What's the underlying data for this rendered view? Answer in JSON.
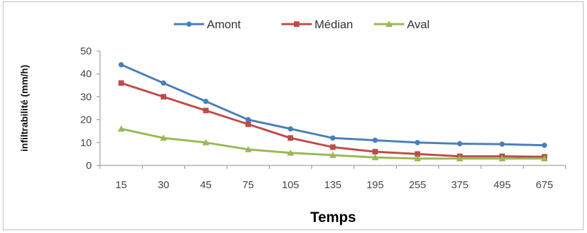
{
  "chart_data": {
    "type": "line",
    "title": "",
    "xlabel": "Temps",
    "ylabel": "infiltrabilité (mm/h)",
    "categories": [
      "15",
      "30",
      "45",
      "75",
      "105",
      "135",
      "195",
      "255",
      "375",
      "495",
      "675"
    ],
    "ylim": [
      0,
      50
    ],
    "yticks": [
      0,
      10,
      20,
      30,
      40,
      50
    ],
    "grid": false,
    "legend_position": "top",
    "series": [
      {
        "name": "Amont",
        "color": "#4a7ebb",
        "marker": "circle",
        "values": [
          44,
          36,
          28,
          20,
          16,
          12,
          11,
          10,
          9.5,
          9.3,
          8.8
        ]
      },
      {
        "name": "Médian",
        "color": "#be4b48",
        "marker": "square",
        "values": [
          36,
          30,
          24,
          18,
          12,
          8,
          6,
          5,
          4,
          4,
          3.8
        ]
      },
      {
        "name": "Aval",
        "color": "#98b954",
        "marker": "triangle",
        "values": [
          16,
          12,
          10,
          7,
          5.5,
          4.5,
          3.5,
          3,
          3,
          3,
          3
        ]
      }
    ]
  }
}
